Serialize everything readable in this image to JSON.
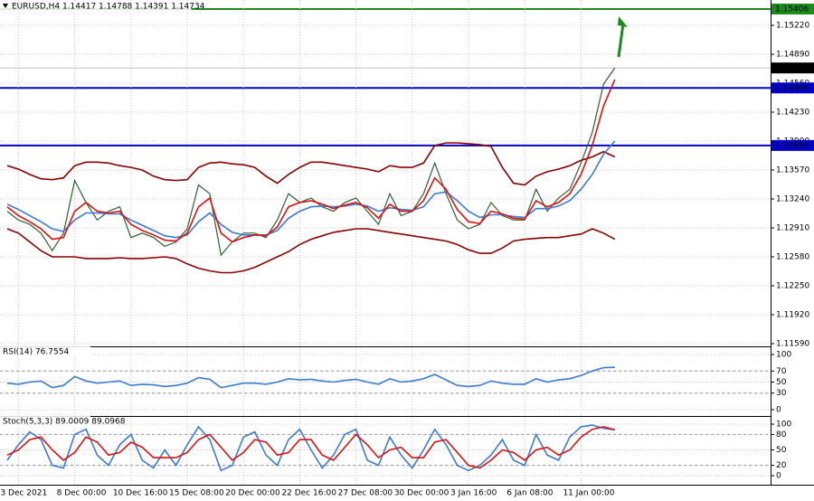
{
  "chart_data": [
    {
      "type": "line",
      "title": "EURUSD,H4  1.14417 1.14788 1.14391 1.14734",
      "categories": [
        null,
        "3 Dec 2021",
        null,
        null,
        null,
        null,
        "8 Dec 00:00",
        null,
        null,
        null,
        null,
        "10 Dec 16:00",
        null,
        null,
        null,
        null,
        "15 Dec 08:00",
        null,
        null,
        null,
        null,
        "20 Dec 00:00",
        null,
        null,
        null,
        null,
        "22 Dec 16:00",
        null,
        null,
        null,
        null,
        "27 Dec 08:00",
        null,
        null,
        null,
        null,
        "30 Dec 00:00",
        null,
        null,
        null,
        null,
        "3 Jan 16:00",
        null,
        null,
        null,
        null,
        "6 Jan 08:00",
        null,
        null,
        null,
        null,
        "11 Jan 00:00",
        null,
        null,
        null
      ],
      "series": [
        {
          "color": "#8b0000",
          "values": [
            1.1362,
            1.1358,
            1.1352,
            1.1347,
            1.1346,
            1.1348,
            1.1362,
            1.1366,
            1.1366,
            1.1365,
            1.1362,
            1.136,
            1.1357,
            1.135,
            1.1346,
            1.1345,
            1.1346,
            1.136,
            1.1365,
            1.1366,
            1.1364,
            1.1363,
            1.136,
            1.135,
            1.1342,
            1.1352,
            1.136,
            1.1366,
            1.1366,
            1.1364,
            1.1362,
            1.136,
            1.1358,
            1.1355,
            1.1362,
            1.136,
            1.136,
            1.1365,
            1.1385,
            1.1388,
            1.1388,
            1.1387,
            1.1386,
            1.1384,
            1.136,
            1.1342,
            1.134,
            1.135,
            1.1355,
            1.1358,
            1.1362,
            1.1368,
            1.1372,
            1.1378,
            1.1372
          ]
        },
        {
          "color": "#8b0000",
          "values": [
            1.129,
            1.1285,
            1.1275,
            1.1265,
            1.1258,
            1.1258,
            1.1258,
            1.1256,
            1.1256,
            1.1256,
            1.1257,
            1.1256,
            1.1256,
            1.1257,
            1.1258,
            1.1256,
            1.125,
            1.1245,
            1.1242,
            1.124,
            1.124,
            1.1242,
            1.1246,
            1.1252,
            1.1258,
            1.1264,
            1.1272,
            1.1278,
            1.1282,
            1.1286,
            1.1288,
            1.129,
            1.129,
            1.1288,
            1.1286,
            1.1284,
            1.1282,
            1.128,
            1.1278,
            1.1276,
            1.1272,
            1.1266,
            1.1262,
            1.1262,
            1.1268,
            1.1276,
            1.1278,
            1.1279,
            1.128,
            1.128,
            1.1282,
            1.1284,
            1.129,
            1.1285,
            1.1278
          ]
        },
        {
          "color": "#2f5e2f",
          "values": [
            1.131,
            1.13,
            1.1295,
            1.1285,
            1.1265,
            1.1285,
            1.1345,
            1.132,
            1.13,
            1.131,
            1.1315,
            1.128,
            1.1285,
            1.128,
            1.127,
            1.1275,
            1.129,
            1.134,
            1.133,
            1.126,
            1.1275,
            1.1285,
            1.1285,
            1.128,
            1.13,
            1.133,
            1.132,
            1.1325,
            1.1315,
            1.131,
            1.132,
            1.1325,
            1.131,
            1.1295,
            1.133,
            1.1305,
            1.131,
            1.133,
            1.1365,
            1.133,
            1.13,
            1.129,
            1.1295,
            1.132,
            1.1305,
            1.13,
            1.13,
            1.1335,
            1.131,
            1.1325,
            1.1335,
            1.1365,
            1.14,
            1.1455,
            1.14734
          ]
        },
        {
          "color": "#3a7bd5",
          "values": [
            1.1318,
            1.1312,
            1.1305,
            1.1298,
            1.129,
            1.1287,
            1.13,
            1.1308,
            1.1308,
            1.1307,
            1.1307,
            1.13,
            1.1294,
            1.1288,
            1.1282,
            1.128,
            1.1283,
            1.1298,
            1.1308,
            1.1295,
            1.1286,
            1.1283,
            1.1283,
            1.1283,
            1.1288,
            1.1302,
            1.131,
            1.1315,
            1.1316,
            1.1315,
            1.1316,
            1.1318,
            1.1316,
            1.131,
            1.1314,
            1.1312,
            1.1311,
            1.1315,
            1.133,
            1.1332,
            1.1322,
            1.131,
            1.1303,
            1.1306,
            1.1306,
            1.1304,
            1.1303,
            1.1313,
            1.1313,
            1.1316,
            1.1322,
            1.1335,
            1.1352,
            1.1375,
            1.139
          ]
        },
        {
          "color": "#e01010",
          "values": [
            1.1315,
            1.1305,
            1.1298,
            1.129,
            1.1278,
            1.128,
            1.131,
            1.132,
            1.131,
            1.1308,
            1.131,
            1.1295,
            1.1288,
            1.1283,
            1.1277,
            1.1276,
            1.1285,
            1.1315,
            1.1325,
            1.1285,
            1.1275,
            1.128,
            1.1283,
            1.1282,
            1.1292,
            1.1315,
            1.132,
            1.1322,
            1.1318,
            1.1313,
            1.1317,
            1.132,
            1.1314,
            1.1302,
            1.1318,
            1.131,
            1.131,
            1.1322,
            1.1348,
            1.1335,
            1.1312,
            1.1298,
            1.1296,
            1.131,
            1.1307,
            1.1302,
            1.1301,
            1.1322,
            1.1315,
            1.132,
            1.133,
            1.1352,
            1.1385,
            1.143,
            1.146
          ]
        }
      ],
      "ylim": [
        1.11559,
        1.15509
      ],
      "yticks": [
        {
          "value": 1.1522,
          "label": "1.15220"
        },
        {
          "value": 1.1489,
          "label": "1.14890"
        },
        {
          "value": 1.1456,
          "label": "1.14560"
        },
        {
          "value": 1.1423,
          "label": "1.14230"
        },
        {
          "value": 1.139,
          "label": "1.13900"
        },
        {
          "value": 1.1357,
          "label": "1.13570"
        },
        {
          "value": 1.1324,
          "label": "1.13240"
        },
        {
          "value": 1.1291,
          "label": "1.12910"
        },
        {
          "value": 1.1258,
          "label": "1.12580"
        },
        {
          "value": 1.1225,
          "label": "1.12250"
        },
        {
          "value": 1.1192,
          "label": "1.11920"
        },
        {
          "value": 1.1159,
          "label": "1.11590"
        }
      ],
      "levels": [
        {
          "value": 1.15406,
          "label": "1.15406",
          "color": "#1a8c1a"
        },
        {
          "value": 1.14506,
          "label": "1.14506",
          "color": "#0000cc"
        },
        {
          "value": 1.1385,
          "label": "1.13850",
          "color": "#0000cc"
        }
      ],
      "current_price": {
        "value": 1.14734,
        "label": "1.14734",
        "color": "#000000"
      },
      "grid": true
    },
    {
      "type": "line",
      "title": "RSI(14) 76.7554",
      "series": [
        {
          "color": "#3a7bd5",
          "values": [
            48,
            46,
            50,
            52,
            40,
            44,
            60,
            52,
            48,
            50,
            52,
            44,
            46,
            45,
            42,
            44,
            48,
            58,
            55,
            40,
            44,
            48,
            48,
            46,
            50,
            56,
            54,
            55,
            52,
            50,
            53,
            55,
            50,
            46,
            56,
            50,
            52,
            56,
            64,
            54,
            44,
            42,
            44,
            52,
            48,
            46,
            46,
            56,
            50,
            54,
            56,
            62,
            70,
            76,
            76.7554
          ]
        }
      ],
      "ylim": [
        0,
        100
      ],
      "yticks": [
        100,
        70,
        50,
        30,
        0
      ],
      "levels": [
        70,
        30
      ],
      "grid": true
    },
    {
      "type": "line",
      "title": "Stoch(5,3,3) 89.0009 89.0968",
      "series": [
        {
          "color": "#3a7bd5",
          "values": [
            30,
            60,
            85,
            70,
            20,
            15,
            80,
            90,
            40,
            20,
            60,
            80,
            30,
            15,
            50,
            20,
            60,
            95,
            70,
            10,
            20,
            75,
            85,
            40,
            20,
            70,
            90,
            50,
            15,
            40,
            80,
            90,
            30,
            20,
            75,
            40,
            15,
            50,
            90,
            60,
            20,
            10,
            20,
            40,
            70,
            30,
            20,
            80,
            40,
            30,
            75,
            95,
            98,
            92,
            89.0009
          ]
        },
        {
          "color": "#e01010",
          "values": [
            40,
            50,
            70,
            75,
            50,
            30,
            45,
            75,
            65,
            40,
            45,
            65,
            55,
            35,
            35,
            35,
            45,
            70,
            80,
            55,
            30,
            45,
            70,
            65,
            40,
            45,
            70,
            70,
            40,
            30,
            55,
            80,
            60,
            35,
            50,
            55,
            35,
            35,
            65,
            70,
            45,
            20,
            15,
            30,
            50,
            45,
            30,
            50,
            55,
            40,
            50,
            75,
            90,
            95,
            89.0968
          ]
        }
      ],
      "ylim": [
        0,
        100
      ],
      "yticks": [
        100,
        80,
        50,
        20,
        0
      ],
      "levels": [
        80,
        20
      ],
      "grid": true
    }
  ]
}
